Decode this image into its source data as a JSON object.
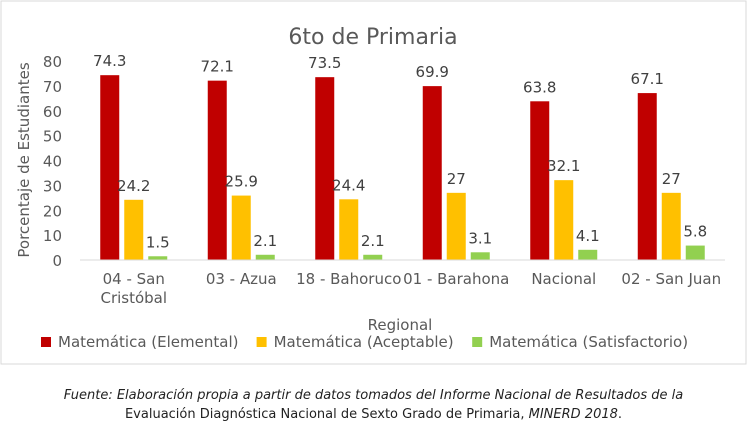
{
  "chart_data": {
    "type": "bar",
    "title": "6to de Primaria",
    "xlabel": "Regional",
    "ylabel": "Porcentaje de Estudiantes",
    "ylim": [
      0,
      80
    ],
    "yticks": [
      0,
      10,
      20,
      30,
      40,
      50,
      60,
      70,
      80
    ],
    "grid": false,
    "legend_position": "bottom",
    "categories": [
      [
        "04 - San",
        "Cristóbal"
      ],
      [
        "03 - Azua"
      ],
      [
        "18 - Bahoruco"
      ],
      [
        "01 - Barahona"
      ],
      [
        "Nacional"
      ],
      [
        "02 - San Juan"
      ]
    ],
    "series": [
      {
        "name": "Matemática (Elemental)",
        "color": "#C00000",
        "values": [
          74.3,
          72.1,
          73.5,
          69.9,
          63.8,
          67.1
        ]
      },
      {
        "name": "Matemática (Aceptable)",
        "color": "#FFC000",
        "values": [
          24.2,
          25.9,
          24.4,
          27,
          32.1,
          27
        ]
      },
      {
        "name": "Matemática (Satisfactorio)",
        "color": "#92D050",
        "values": [
          1.5,
          2.1,
          2.1,
          3.1,
          4.1,
          5.8
        ]
      }
    ]
  },
  "caption": {
    "part1": "Fuente: Elaboración propia a partir de datos tomados del Informe Nacional de Resultados de la",
    "part2": "Evaluación Diagnóstica Nacional de Sexto Grado de Primaria,",
    "part3": " MINERD 2018",
    "part4": "."
  }
}
